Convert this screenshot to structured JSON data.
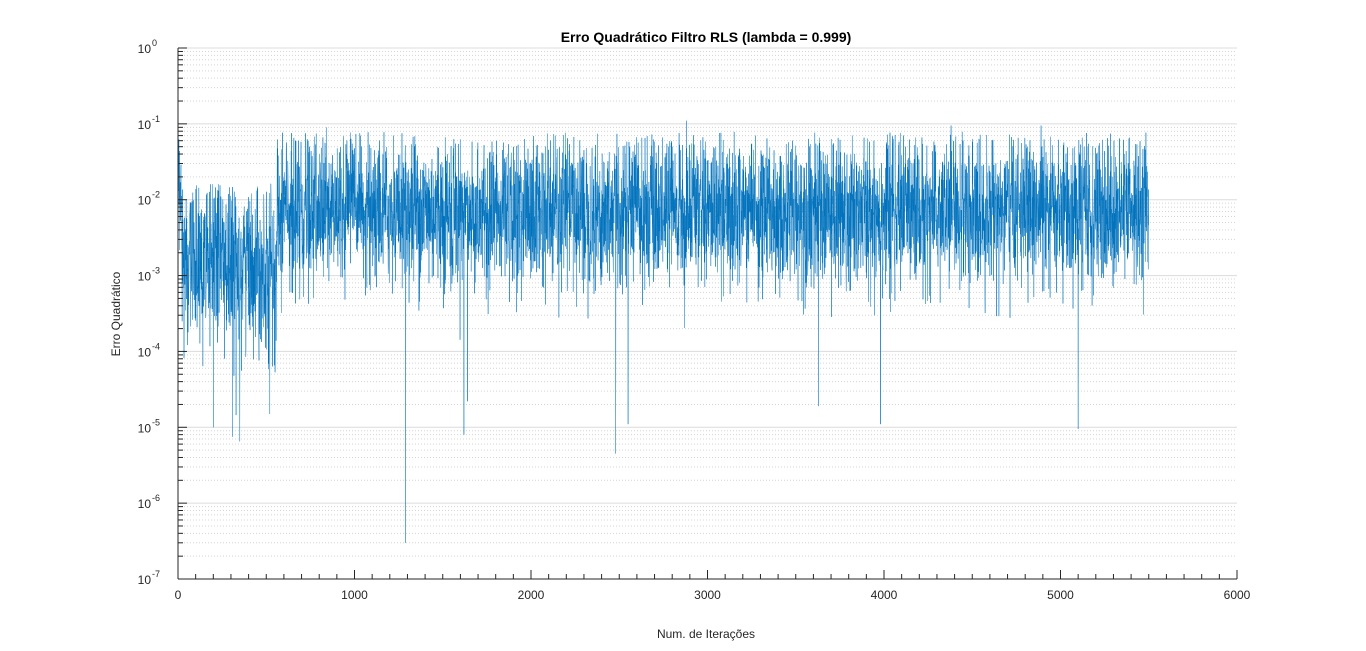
{
  "chart_data": {
    "type": "line",
    "title": "Erro Quadrático Filtro RLS (lambda = 0.999)",
    "xlabel": "Num. de Iterações",
    "ylabel": "Erro Quadrático",
    "xlim": [
      0,
      6000
    ],
    "ylim": [
      1e-07,
      1
    ],
    "yscale": "log",
    "grid": true,
    "x_ticks": [
      "0",
      "1000",
      "2000",
      "3000",
      "4000",
      "5000",
      "6000"
    ],
    "y_ticks": [
      {
        "base": "10",
        "exp": "-7"
      },
      {
        "base": "10",
        "exp": "-6"
      },
      {
        "base": "10",
        "exp": "-5"
      },
      {
        "base": "10",
        "exp": "-4"
      },
      {
        "base": "10",
        "exp": "-3"
      },
      {
        "base": "10",
        "exp": "-2"
      },
      {
        "base": "10",
        "exp": "-1"
      },
      {
        "base": "10",
        "exp": "0"
      }
    ],
    "series": [
      {
        "color": "#0072BD",
        "n_points": 5500,
        "segments": [
          {
            "x_start": 0,
            "x_end": 20,
            "median": 0.01,
            "spread_decades": 0.4
          },
          {
            "x_start": 20,
            "x_end": 560,
            "median": 0.0015,
            "spread_decades": 0.55
          },
          {
            "x_start": 560,
            "x_end": 5500,
            "median": 0.007,
            "spread_decades": 0.5
          }
        ],
        "notable_points": [
          {
            "x": 1290,
            "y": 3e-07
          },
          {
            "x": 2480,
            "y": 4.5e-06
          },
          {
            "x": 1620,
            "y": 8e-06
          },
          {
            "x": 5100,
            "y": 9.5e-06
          },
          {
            "x": 3980,
            "y": 1.1e-05
          },
          {
            "x": 2550,
            "y": 1.1e-05
          },
          {
            "x": 350,
            "y": 6.5e-06
          },
          {
            "x": 310,
            "y": 7.5e-06
          },
          {
            "x": 200,
            "y": 1e-05
          },
          {
            "x": 520,
            "y": 1.5e-05
          },
          {
            "x": 3630,
            "y": 1.9e-05
          },
          {
            "x": 1640,
            "y": 2.2e-05
          },
          {
            "x": 2880,
            "y": 0.11
          },
          {
            "x": 840,
            "y": 0.09
          },
          {
            "x": 4890,
            "y": 0.095
          },
          {
            "x": 4380,
            "y": 0.095
          }
        ]
      }
    ]
  }
}
